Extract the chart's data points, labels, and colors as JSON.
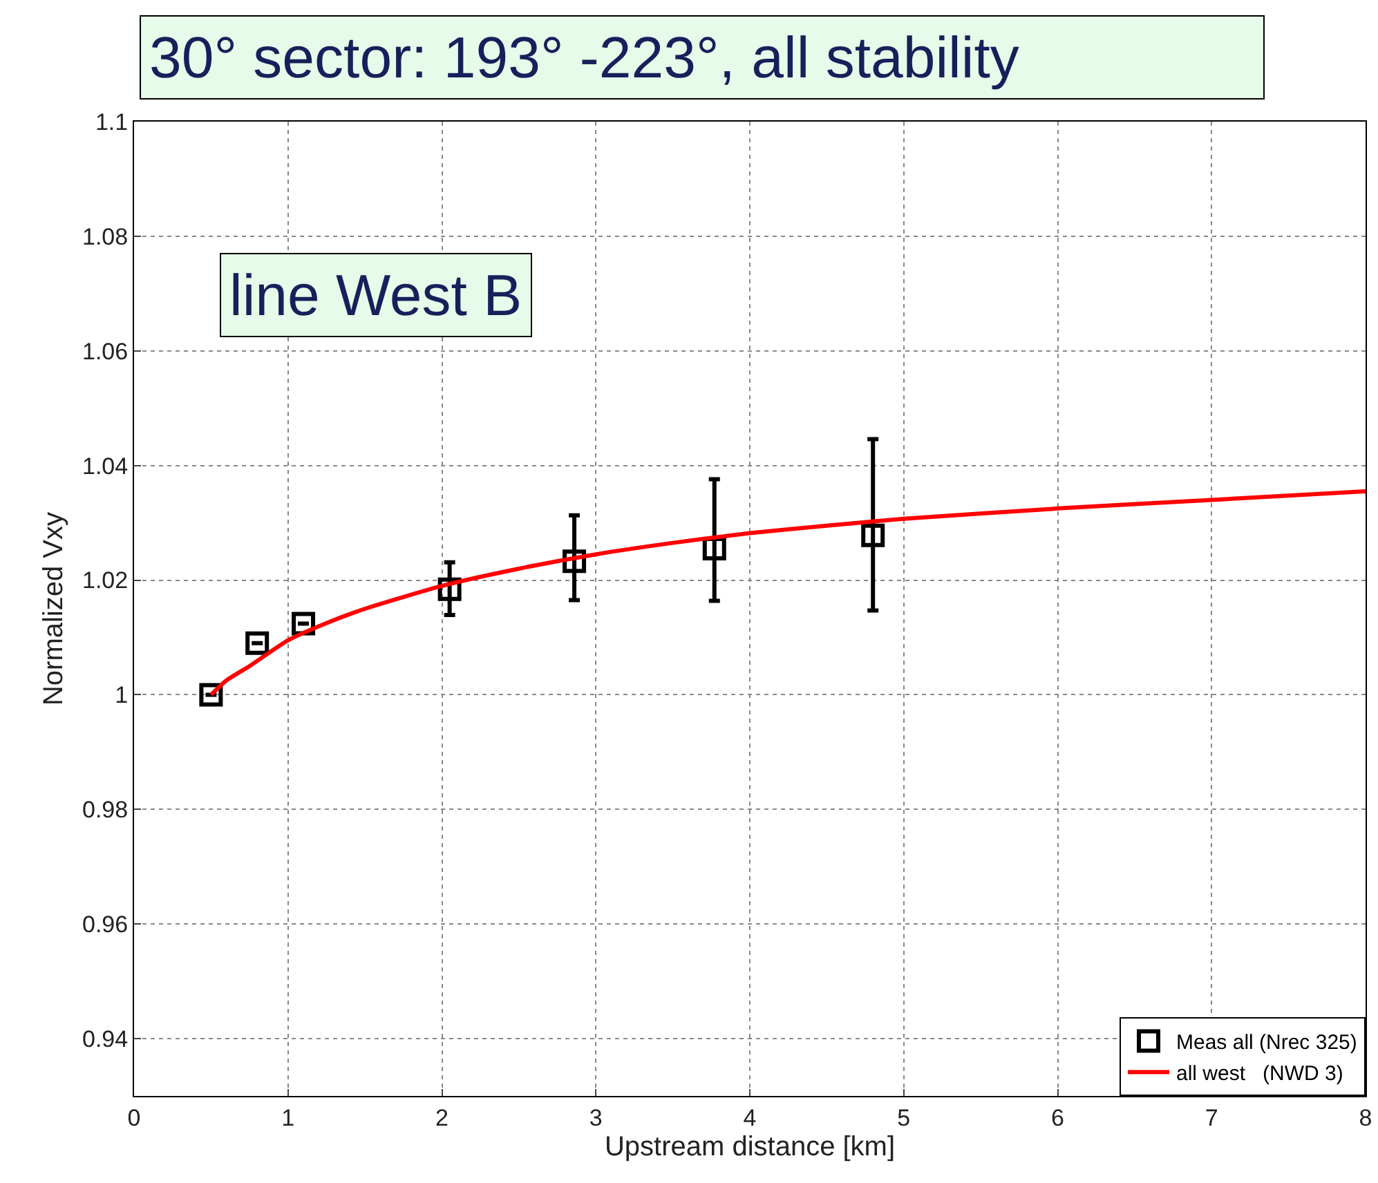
{
  "chart_data": {
    "type": "scatter",
    "title": "30° sector: 193° -223°, all stability",
    "xlabel": "Upstream distance [km]",
    "ylabel": "Normalized Vxy",
    "annotations": [
      "line West B"
    ],
    "series": [
      {
        "name": "Meas all (Nrec 325)",
        "type": "scatter",
        "color": "#000000",
        "marker": "square",
        "x": [
          0.5,
          0.8,
          1.1,
          2.05,
          2.86,
          3.77,
          4.8
        ],
        "values": [
          1.0,
          1.009,
          1.0124,
          1.0184,
          1.0233,
          1.0255,
          1.0278
        ],
        "errors": [
          null,
          null,
          null,
          [
            1.0139,
            1.0231
          ],
          [
            1.0165,
            1.0313
          ],
          [
            1.0164,
            1.0376
          ],
          [
            1.0147,
            1.0446
          ]
        ]
      },
      {
        "name": "all west   (NWD 3)",
        "type": "line",
        "color": "#ff0000",
        "line_style": "solid",
        "x": [
          0.5,
          0.6,
          0.75,
          1,
          1.25,
          1.5,
          2,
          2.5,
          3,
          3.5,
          4,
          4.5,
          5,
          6,
          7,
          8
        ],
        "values": [
          1.0,
          1.0025,
          1.005,
          1.0095,
          1.0125,
          1.015,
          1.019,
          1.022,
          1.0245,
          1.0265,
          1.0282,
          1.0295,
          1.0307,
          1.0325,
          1.034,
          1.0355
        ]
      }
    ],
    "xlim": [
      0,
      8
    ],
    "xticks": [
      0,
      1,
      2,
      3,
      4,
      5,
      6,
      7,
      8
    ],
    "ylim": [
      0.93,
      1.1
    ],
    "yticks": [
      0.94,
      0.96,
      0.98,
      1,
      1.02,
      1.04,
      1.06,
      1.08,
      1.1
    ],
    "grid": true,
    "legend": "bottom right"
  }
}
